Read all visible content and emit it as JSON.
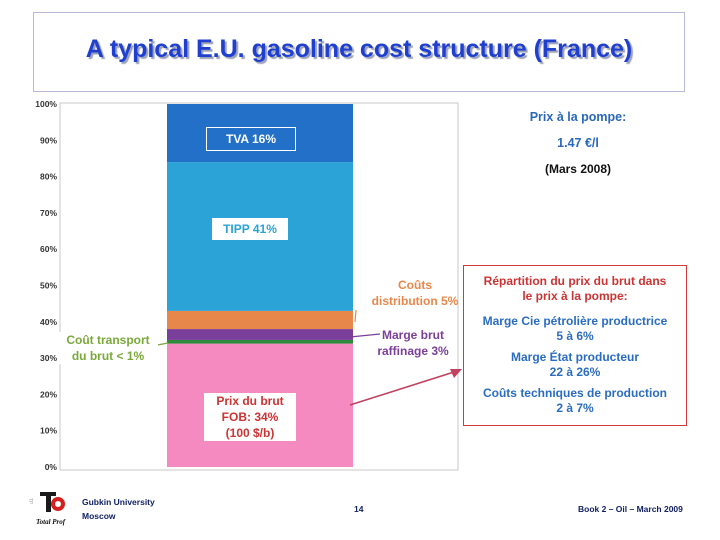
{
  "header": {
    "title": "A typical E.U. gasoline cost structure (France)"
  },
  "chart_data": {
    "type": "bar",
    "stacked": true,
    "ylim": [
      0,
      100
    ],
    "ytick_labels": [
      "0%",
      "10%",
      "20%",
      "30%",
      "40%",
      "50%",
      "60%",
      "70%",
      "80%",
      "90%",
      "100%"
    ],
    "grid": false,
    "segments": [
      {
        "name": "Prix du brut FOB",
        "value": 34,
        "color": "#f58ac0"
      },
      {
        "name": "Coût transport du brut",
        "value": 1,
        "color": "#2e8b3e"
      },
      {
        "name": "Marge brut raffinage",
        "value": 3,
        "color": "#7a3f9a"
      },
      {
        "name": "Coûts distribution",
        "value": 5,
        "color": "#e8874a"
      },
      {
        "name": "TIPP",
        "value": 41,
        "color": "#2ba3d6"
      },
      {
        "name": "TVA",
        "value": 16,
        "color": "#2370c8"
      }
    ]
  },
  "labels": {
    "tva": "TVA 16%",
    "tipp": "TIPP 41%",
    "couts_1": "Coûts",
    "couts_2": "distribution 5%",
    "marge_1": "Marge brut",
    "marge_2": "raffinage 3%",
    "transport_1": "Coût transport",
    "transport_2": "du brut < 1%",
    "prix_1": "Prix du brut",
    "prix_2": "FOB: 34%",
    "prix_3": "(100 $/b)"
  },
  "price": {
    "heading": "Prix à la pompe:",
    "value": "1.47 €/l",
    "date": "(Mars 2008)"
  },
  "repartition": {
    "heading_1": "Répartition du prix du brut dans",
    "heading_2": "le prix à la pompe:",
    "items": [
      {
        "l1": "Marge Cie pétrolière productrice",
        "l2": "5 à 6%"
      },
      {
        "l1": "Marge État producteur",
        "l2": "22 à 26%"
      },
      {
        "l1": "Coûts techniques de production",
        "l2": "2 à 7%"
      }
    ]
  },
  "colors": {
    "title": "#1f3fd0",
    "annotation_orange": "#e8874a",
    "annotation_purple": "#7a3f9a",
    "annotation_green": "#7aa83a",
    "annotation_red": "#cc3333",
    "annotation_blue": "#2a6cc2",
    "arrow": "#c04060"
  },
  "footer": {
    "university": "Gubkin University",
    "city": "Moscow",
    "page": "14",
    "book": "Book 2 – Oil – March 2009"
  },
  "logo": {
    "caption": "Total Prof"
  }
}
